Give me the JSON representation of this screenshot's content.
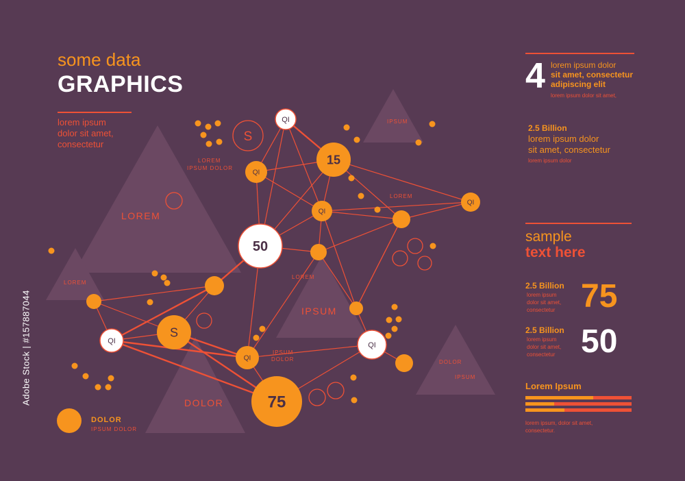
{
  "colors": {
    "background": "#573a53",
    "triangle": "#6b4862",
    "orange": "#f7941e",
    "red": "#ee5136",
    "white": "#ffffff",
    "dark_text": "#4a2f45"
  },
  "header": {
    "subtitle": "some data",
    "title": "GRAPHICS",
    "intro": [
      "lorem ipsum",
      "dolor sit amet,",
      "consectetur"
    ]
  },
  "diagram": {
    "node_labels": {
      "n_qi_top": "QI",
      "n_qi_left": "QI",
      "n_15": "15",
      "n_qi_mid": "QI",
      "n_qi_right": "QI",
      "n_50": "50",
      "n_s": "S",
      "n_qi_lower": "QI",
      "n_qi_center": "QI",
      "n_qi_white_right": "QI",
      "n_75": "75"
    },
    "s_outline": "S",
    "triangle_labels": {
      "t_big_left": "LOREM",
      "t_small_left": "LOREM",
      "t_center": "IPSUM",
      "t_bottom": "DOLOR",
      "t_top_right": "IPSUM",
      "t_right_dolor": "DOLOR",
      "t_right_ipsum": "IPSUM"
    },
    "annotations": {
      "a_lorem_ipsum_dolor_1": "LOREM",
      "a_lorem_ipsum_dolor_2": "IPSUM DOLOR",
      "a_lorem_right": "LOREM",
      "a_lorem_center": "LOREM",
      "a_ipsum_dolor_1": "IPSUM",
      "a_ipsum_dolor_2": "DOLOR"
    },
    "legend": {
      "title": "DOLOR",
      "subtitle": "IPSUM DOLOR"
    }
  },
  "right_panel": {
    "big_number": "4",
    "block1": [
      "lorem ipsum dolor",
      "sit amet, consectetur",
      "adipiscing elit"
    ],
    "block1_small": "lorem ipsum dolor sit amet,",
    "block2_title": "2.5 Billion",
    "block2": [
      "lorem ipsum dolor",
      "sit amet, consectetur"
    ],
    "block2_small": "lorem ipsum dolor",
    "sample": "sample",
    "text_here": "text here",
    "stat1": {
      "title": "2.5 Billion",
      "lines": [
        "lorem ipsum",
        "dolor sit amet,",
        "consectetur"
      ],
      "value": "75"
    },
    "stat2": {
      "title": "2.5 Billion",
      "lines": [
        "lorem ipsum",
        "dolor sit amet,",
        "consectetur"
      ],
      "value": "50"
    },
    "bars_title": "Lorem Ipsum",
    "bars": [
      0.64,
      0.27,
      0.37
    ],
    "footer": [
      "lorem ipsum, dolor sit amet,",
      "consectetur."
    ]
  },
  "watermark": {
    "credit": "Adobe Stock | #157887044"
  }
}
